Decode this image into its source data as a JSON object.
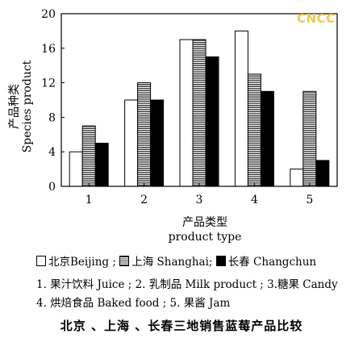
{
  "chart_data": {
    "type": "bar",
    "categories": [
      "1",
      "2",
      "3",
      "4",
      "5"
    ],
    "series": [
      {
        "name": "北京Beijing",
        "key": "beijing",
        "values": [
          4,
          10,
          17,
          18,
          2
        ]
      },
      {
        "name": "上海 Shanghai",
        "key": "shanghai",
        "values": [
          7,
          12,
          17,
          13,
          11
        ]
      },
      {
        "name": "长春 Changchun",
        "key": "changchun",
        "values": [
          5,
          10,
          15,
          11,
          3
        ]
      }
    ],
    "y_ticks": [
      0,
      4,
      8,
      12,
      16,
      20
    ],
    "ylim": [
      0,
      20
    ],
    "ylabel_cn": "产品种类",
    "ylabel_en": "Species product",
    "xlabel_cn": "产品类型",
    "xlabel_en": "product type",
    "legend_placement": "bottom",
    "grid": false
  },
  "watermark": "CNCC",
  "legend": {
    "beijing": "北京Beijing ;",
    "shanghai": "上海 Shanghai;",
    "changchun": "长春 Changchun"
  },
  "notes": {
    "line1": "1. 果汁饮料 Juice ; 2. 乳制品 Milk product ; 3.糖果 Candy",
    "line2": "4. 烘焙食品 Baked food ; 5. 果酱 Jam"
  },
  "caption": "北京 、上海 、长春三地销售蓝莓产品比较"
}
